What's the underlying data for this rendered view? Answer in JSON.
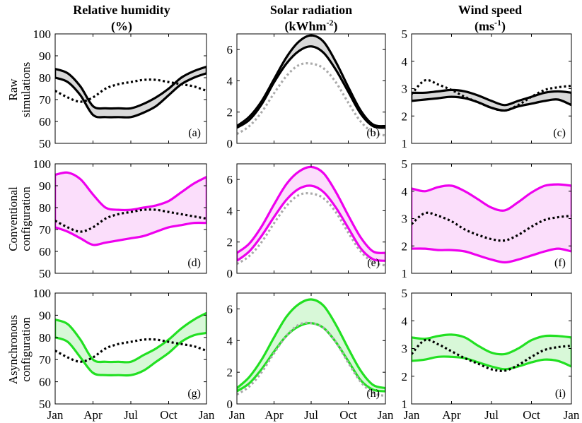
{
  "figure": {
    "column_titles": [
      {
        "line1": "Relative humidity",
        "line2": "(%)",
        "sup": ""
      },
      {
        "line1": "Solar radiation",
        "line2": "(kWhm",
        "sup": "-2",
        "close": ")"
      },
      {
        "line1": "Wind speed",
        "line2": "(ms",
        "sup": "-1",
        "close": ")"
      }
    ],
    "row_labels": [
      {
        "line1": "Raw",
        "line2": "simulations"
      },
      {
        "line1": "Conventional",
        "line2": "configuration"
      },
      {
        "line1": "Asynchronous",
        "line2": "configuration"
      }
    ],
    "x_tick_labels": [
      "Jan",
      "Apr",
      "Jul",
      "Oct",
      "Jan"
    ],
    "colors": {
      "raw": "#000000",
      "raw_fill": "#d9d9d9",
      "conventional": "#ee00ee",
      "conventional_fill": "#fbdefb",
      "asynchronous": "#22e022",
      "asynchronous_fill": "#d8f8d8",
      "observed_dotted": "#000000",
      "raw_reference_dotted": "#aaaaaa"
    }
  },
  "chart_data": [
    {
      "id": "a",
      "type": "line",
      "panel_label": "(a)",
      "variable": "Relative humidity (%)",
      "row": "Raw simulations",
      "ylim": [
        50,
        100
      ],
      "y_ticks": [
        50,
        60,
        70,
        80,
        90,
        100
      ],
      "x_ticks": [
        0,
        3,
        6,
        9,
        12
      ],
      "band": {
        "upper": {
          "x": [
            0,
            1,
            2,
            3,
            4,
            5,
            6,
            7,
            8,
            9,
            10,
            11,
            12
          ],
          "y": [
            84,
            82,
            76,
            67,
            66,
            66,
            66,
            68,
            71,
            75,
            80,
            83,
            85
          ]
        },
        "lower": {
          "x": [
            0,
            1,
            2,
            3,
            4,
            5,
            6,
            7,
            8,
            9,
            10,
            11,
            12
          ],
          "y": [
            80,
            78,
            72,
            63,
            62,
            62,
            62,
            64,
            67,
            72,
            77,
            80,
            82
          ]
        },
        "color": "raw",
        "fill": "raw_fill"
      },
      "series": [
        {
          "name": "observed",
          "style": "dotted",
          "color": "observed_dotted",
          "x": [
            0,
            1,
            2,
            3,
            4,
            5,
            6,
            7,
            8,
            9,
            10,
            11,
            12
          ],
          "y": [
            74,
            71,
            69,
            71,
            75,
            77,
            78,
            79,
            79,
            78,
            77,
            76,
            74
          ]
        }
      ]
    },
    {
      "id": "b",
      "type": "line",
      "panel_label": "(b)",
      "variable": "Solar radiation (kWhm-2)",
      "row": "Raw simulations",
      "ylim": [
        0,
        7
      ],
      "y_ticks": [
        0,
        2,
        4,
        6
      ],
      "x_ticks": [
        0,
        3,
        6,
        9,
        12
      ],
      "band": {
        "upper": {
          "x": [
            0,
            1,
            2,
            3,
            4,
            5,
            6,
            7,
            8,
            9,
            10,
            11,
            12
          ],
          "y": [
            1.1,
            1.7,
            2.7,
            4.1,
            5.5,
            6.5,
            6.9,
            6.5,
            5.2,
            3.6,
            2.1,
            1.2,
            1.1
          ]
        },
        "lower": {
          "x": [
            0,
            1,
            2,
            3,
            4,
            5,
            6,
            7,
            8,
            9,
            10,
            11,
            12
          ],
          "y": [
            1.0,
            1.5,
            2.5,
            3.9,
            5.1,
            5.9,
            6.2,
            5.8,
            4.7,
            3.3,
            1.9,
            1.1,
            1.0
          ]
        },
        "color": "raw",
        "fill": "raw_fill"
      },
      "series": [
        {
          "name": "observed",
          "style": "dotted",
          "color": "raw_reference_dotted",
          "x": [
            0,
            1,
            2,
            3,
            4,
            5,
            6,
            7,
            8,
            9,
            10,
            11,
            12
          ],
          "y": [
            0.6,
            1.1,
            2.0,
            3.2,
            4.3,
            5.0,
            5.1,
            4.8,
            3.9,
            2.6,
            1.4,
            0.7,
            0.5
          ]
        }
      ]
    },
    {
      "id": "c",
      "type": "line",
      "panel_label": "(c)",
      "variable": "Wind speed (ms-1)",
      "row": "Raw simulations",
      "ylim": [
        1,
        5
      ],
      "y_ticks": [
        1,
        2,
        3,
        4,
        5
      ],
      "x_ticks": [
        0,
        3,
        6,
        9,
        12
      ],
      "band": {
        "upper": {
          "x": [
            0,
            1,
            2,
            3,
            4,
            5,
            6,
            7,
            8,
            9,
            10,
            11,
            12
          ],
          "y": [
            2.85,
            2.85,
            2.9,
            2.95,
            2.9,
            2.75,
            2.55,
            2.4,
            2.55,
            2.7,
            2.85,
            2.9,
            2.85
          ]
        },
        "lower": {
          "x": [
            0,
            1,
            2,
            3,
            4,
            5,
            6,
            7,
            8,
            9,
            10,
            11,
            12
          ],
          "y": [
            2.55,
            2.6,
            2.65,
            2.7,
            2.65,
            2.5,
            2.3,
            2.2,
            2.35,
            2.45,
            2.55,
            2.6,
            2.4
          ]
        },
        "color": "raw",
        "fill": "raw_fill"
      },
      "series": [
        {
          "name": "observed",
          "style": "dotted",
          "color": "observed_dotted",
          "x": [
            0,
            1,
            2,
            3,
            4,
            5,
            6,
            7,
            8,
            9,
            10,
            11,
            12
          ],
          "y": [
            2.8,
            3.3,
            3.15,
            2.95,
            2.7,
            2.5,
            2.3,
            2.2,
            2.4,
            2.7,
            2.95,
            3.05,
            3.1
          ]
        }
      ]
    },
    {
      "id": "d",
      "type": "line",
      "panel_label": "(d)",
      "variable": "Relative humidity (%)",
      "row": "Conventional configuration",
      "ylim": [
        50,
        100
      ],
      "y_ticks": [
        50,
        60,
        70,
        80,
        90,
        100
      ],
      "x_ticks": [
        0,
        3,
        6,
        9,
        12
      ],
      "band": {
        "upper": {
          "x": [
            0,
            1,
            2,
            3,
            4,
            5,
            6,
            7,
            8,
            9,
            10,
            11,
            12
          ],
          "y": [
            95,
            96,
            93,
            86,
            80,
            79,
            79,
            80,
            81,
            83,
            87,
            91,
            94
          ]
        },
        "lower": {
          "x": [
            0,
            1,
            2,
            3,
            4,
            5,
            6,
            7,
            8,
            9,
            10,
            11,
            12
          ],
          "y": [
            71,
            69,
            66,
            63,
            64,
            65,
            66,
            67,
            69,
            71,
            72,
            73,
            73
          ]
        },
        "color": "conventional",
        "fill": "conventional_fill"
      },
      "series": [
        {
          "name": "observed",
          "style": "dotted",
          "color": "observed_dotted",
          "x": [
            0,
            1,
            2,
            3,
            4,
            5,
            6,
            7,
            8,
            9,
            10,
            11,
            12
          ],
          "y": [
            74,
            71,
            69,
            71,
            75,
            77,
            78,
            79,
            79,
            78,
            77,
            76,
            75
          ]
        }
      ]
    },
    {
      "id": "e",
      "type": "line",
      "panel_label": "(e)",
      "variable": "Solar radiation (kWhm-2)",
      "row": "Conventional configuration",
      "ylim": [
        0,
        7
      ],
      "y_ticks": [
        0,
        2,
        4,
        6
      ],
      "x_ticks": [
        0,
        3,
        6,
        9,
        12
      ],
      "band": {
        "upper": {
          "x": [
            0,
            1,
            2,
            3,
            4,
            5,
            6,
            7,
            8,
            9,
            10,
            11,
            12
          ],
          "y": [
            1.3,
            1.9,
            3.0,
            4.4,
            5.7,
            6.5,
            6.8,
            6.4,
            5.2,
            3.7,
            2.3,
            1.4,
            1.3
          ]
        },
        "lower": {
          "x": [
            0,
            1,
            2,
            3,
            4,
            5,
            6,
            7,
            8,
            9,
            10,
            11,
            12
          ],
          "y": [
            0.8,
            1.4,
            2.4,
            3.6,
            4.7,
            5.4,
            5.6,
            5.2,
            4.2,
            2.9,
            1.6,
            0.9,
            0.8
          ]
        },
        "color": "conventional",
        "fill": "conventional_fill"
      },
      "series": [
        {
          "name": "observed",
          "style": "dotted",
          "color": "raw_reference_dotted",
          "x": [
            0,
            1,
            2,
            3,
            4,
            5,
            6,
            7,
            8,
            9,
            10,
            11,
            12
          ],
          "y": [
            0.6,
            1.1,
            2.0,
            3.2,
            4.3,
            5.0,
            5.1,
            4.8,
            3.9,
            2.6,
            1.4,
            0.7,
            0.5
          ]
        }
      ]
    },
    {
      "id": "f",
      "type": "line",
      "panel_label": "(f)",
      "variable": "Wind speed (ms-1)",
      "row": "Conventional configuration",
      "ylim": [
        1,
        5
      ],
      "y_ticks": [
        1,
        2,
        3,
        4,
        5
      ],
      "x_ticks": [
        0,
        3,
        6,
        9,
        12
      ],
      "band": {
        "upper": {
          "x": [
            0,
            1,
            2,
            3,
            4,
            5,
            6,
            7,
            8,
            9,
            10,
            11,
            12
          ],
          "y": [
            4.1,
            4.0,
            4.15,
            4.2,
            4.0,
            3.7,
            3.4,
            3.3,
            3.6,
            3.95,
            4.2,
            4.25,
            4.2
          ]
        },
        "lower": {
          "x": [
            0,
            1,
            2,
            3,
            4,
            5,
            6,
            7,
            8,
            9,
            10,
            11,
            12
          ],
          "y": [
            1.9,
            1.9,
            1.85,
            1.85,
            1.8,
            1.65,
            1.5,
            1.4,
            1.5,
            1.65,
            1.8,
            1.9,
            1.8
          ]
        },
        "color": "conventional",
        "fill": "conventional_fill"
      },
      "series": [
        {
          "name": "observed",
          "style": "dotted",
          "color": "observed_dotted",
          "x": [
            0,
            1,
            2,
            3,
            4,
            5,
            6,
            7,
            8,
            9,
            10,
            11,
            12
          ],
          "y": [
            2.8,
            3.2,
            3.1,
            2.9,
            2.6,
            2.4,
            2.25,
            2.2,
            2.4,
            2.7,
            2.95,
            3.05,
            3.1
          ]
        }
      ]
    },
    {
      "id": "g",
      "type": "line",
      "panel_label": "(g)",
      "variable": "Relative humidity (%)",
      "row": "Asynchronous configuration",
      "ylim": [
        50,
        100
      ],
      "y_ticks": [
        50,
        60,
        70,
        80,
        90,
        100
      ],
      "x_ticks": [
        0,
        3,
        6,
        9,
        12
      ],
      "band": {
        "upper": {
          "x": [
            0,
            1,
            2,
            3,
            4,
            5,
            6,
            7,
            8,
            9,
            10,
            11,
            12
          ],
          "y": [
            88,
            86,
            79,
            70,
            69,
            69,
            69,
            72,
            75,
            79,
            84,
            88,
            91
          ]
        },
        "lower": {
          "x": [
            0,
            1,
            2,
            3,
            4,
            5,
            6,
            7,
            8,
            9,
            10,
            11,
            12
          ],
          "y": [
            80,
            78,
            71,
            64,
            63,
            63,
            63,
            65,
            69,
            73,
            78,
            81,
            82
          ]
        },
        "color": "asynchronous",
        "fill": "asynchronous_fill"
      },
      "series": [
        {
          "name": "observed",
          "style": "dotted",
          "color": "observed_dotted",
          "x": [
            0,
            1,
            2,
            3,
            4,
            5,
            6,
            7,
            8,
            9,
            10,
            11,
            12
          ],
          "y": [
            74,
            71,
            69,
            71,
            75,
            77,
            78,
            79,
            79,
            78,
            77,
            76,
            74
          ]
        }
      ]
    },
    {
      "id": "h",
      "type": "line",
      "panel_label": "(h)",
      "variable": "Solar radiation (kWhm-2)",
      "row": "Asynchronous configuration",
      "ylim": [
        0,
        7
      ],
      "y_ticks": [
        0,
        2,
        4,
        6
      ],
      "x_ticks": [
        0,
        3,
        6,
        9,
        12
      ],
      "band": {
        "upper": {
          "x": [
            0,
            1,
            2,
            3,
            4,
            5,
            6,
            7,
            8,
            9,
            10,
            11,
            12
          ],
          "y": [
            1.0,
            1.7,
            2.8,
            4.2,
            5.5,
            6.3,
            6.6,
            6.2,
            5.0,
            3.5,
            2.1,
            1.2,
            1.0
          ]
        },
        "lower": {
          "x": [
            0,
            1,
            2,
            3,
            4,
            5,
            6,
            7,
            8,
            9,
            10,
            11,
            12
          ],
          "y": [
            0.8,
            1.3,
            2.2,
            3.3,
            4.3,
            4.9,
            5.1,
            4.8,
            3.9,
            2.7,
            1.5,
            0.9,
            0.8
          ]
        },
        "color": "asynchronous",
        "fill": "asynchronous_fill"
      },
      "series": [
        {
          "name": "observed",
          "style": "dotted",
          "color": "raw_reference_dotted",
          "x": [
            0,
            1,
            2,
            3,
            4,
            5,
            6,
            7,
            8,
            9,
            10,
            11,
            12
          ],
          "y": [
            0.6,
            1.1,
            2.0,
            3.2,
            4.3,
            5.0,
            5.1,
            4.8,
            3.9,
            2.6,
            1.4,
            0.7,
            0.5
          ]
        }
      ]
    },
    {
      "id": "i",
      "type": "line",
      "panel_label": "(i)",
      "variable": "Wind speed (ms-1)",
      "row": "Asynchronous configuration",
      "ylim": [
        1,
        5
      ],
      "y_ticks": [
        1,
        2,
        3,
        4,
        5
      ],
      "x_ticks": [
        0,
        3,
        6,
        9,
        12
      ],
      "band": {
        "upper": {
          "x": [
            0,
            1,
            2,
            3,
            4,
            5,
            6,
            7,
            8,
            9,
            10,
            11,
            12
          ],
          "y": [
            3.4,
            3.35,
            3.45,
            3.5,
            3.4,
            3.1,
            2.85,
            2.8,
            3.0,
            3.3,
            3.45,
            3.45,
            3.4
          ]
        },
        "lower": {
          "x": [
            0,
            1,
            2,
            3,
            4,
            5,
            6,
            7,
            8,
            9,
            10,
            11,
            12
          ],
          "y": [
            2.55,
            2.6,
            2.7,
            2.7,
            2.65,
            2.5,
            2.35,
            2.25,
            2.35,
            2.5,
            2.6,
            2.55,
            2.35
          ]
        },
        "color": "asynchronous",
        "fill": "asynchronous_fill"
      },
      "series": [
        {
          "name": "observed",
          "style": "dotted",
          "color": "observed_dotted",
          "x": [
            0,
            1,
            2,
            3,
            4,
            5,
            6,
            7,
            8,
            9,
            10,
            11,
            12
          ],
          "y": [
            2.8,
            3.3,
            3.15,
            2.9,
            2.65,
            2.45,
            2.25,
            2.2,
            2.4,
            2.7,
            2.95,
            3.05,
            3.1
          ]
        }
      ]
    }
  ]
}
